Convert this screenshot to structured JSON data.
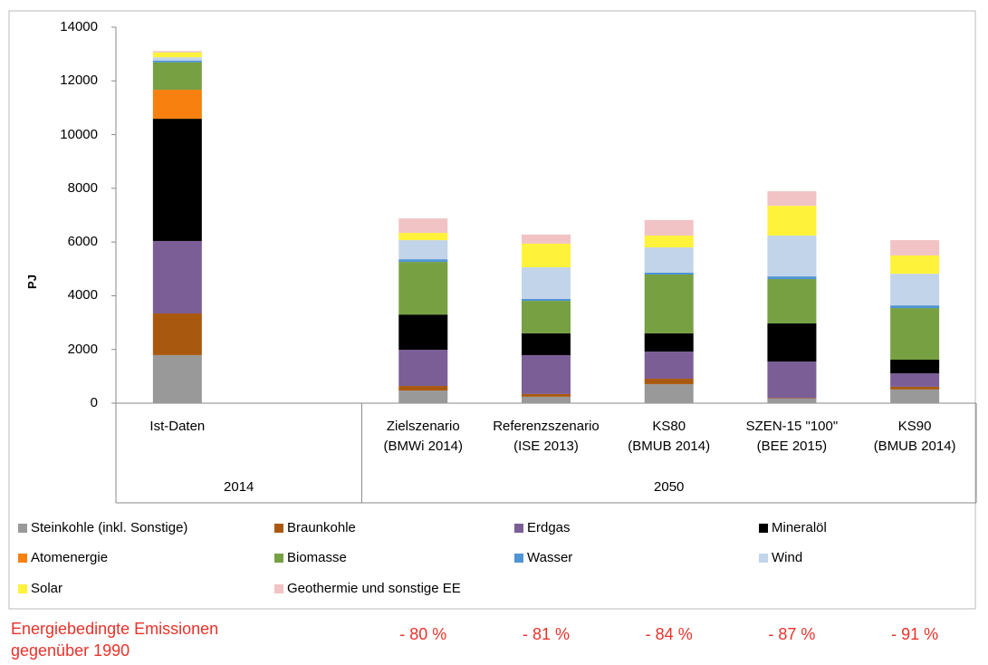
{
  "chart_data": {
    "type": "stacked_bar",
    "ylabel": "PJ",
    "categories": [
      "Ist-Daten",
      null,
      "Zielszenario\n(BMWi 2014)",
      "Referenzszenario\n(ISE 2013)",
      "KS80\n(BMUB 2014)",
      "SZEN-15 \"100\"\n(BEE 2015)",
      "KS90\n(BMUB 2014)"
    ],
    "groups": [
      "2014",
      "2050"
    ],
    "ylim": [
      0,
      14000
    ],
    "yticks": [
      0,
      2000,
      4000,
      6000,
      8000,
      10000,
      12000,
      14000
    ],
    "series": [
      {
        "name": "Steinkohle (inkl. Sonstige)",
        "color": "#999999",
        "values": [
          1790,
          null,
          470,
          240,
          710,
          170,
          510
        ]
      },
      {
        "name": "Braunkohle",
        "color": "#a9590f",
        "values": [
          1550,
          null,
          170,
          100,
          200,
          20,
          100
        ]
      },
      {
        "name": "Erdgas",
        "color": "#7b5e96",
        "values": [
          2700,
          null,
          1350,
          1450,
          1010,
          1360,
          500
        ]
      },
      {
        "name": "Mineralöl",
        "color": "#000000",
        "values": [
          4550,
          null,
          1310,
          810,
          680,
          1420,
          510
        ]
      },
      {
        "name": "Atomenergie",
        "color": "#f7800e",
        "values": [
          1080,
          null,
          0,
          0,
          0,
          0,
          0
        ]
      },
      {
        "name": "Biomasse",
        "color": "#77a043",
        "values": [
          1020,
          null,
          1960,
          1210,
          2190,
          1650,
          1920
        ]
      },
      {
        "name": "Wasser",
        "color": "#4f94d4",
        "values": [
          70,
          null,
          100,
          70,
          70,
          100,
          100
        ]
      },
      {
        "name": "Wind",
        "color": "#c2d4e9",
        "values": [
          120,
          null,
          710,
          1180,
          940,
          1520,
          1180
        ]
      },
      {
        "name": "Solar",
        "color": "#fff23a",
        "values": [
          180,
          null,
          270,
          880,
          440,
          1110,
          680
        ]
      },
      {
        "name": "Geothermie und sonstige EE",
        "color": "#f1c3c5",
        "values": [
          50,
          null,
          540,
          340,
          580,
          540,
          570
        ]
      }
    ],
    "annotations": {
      "label": "Energiebedingte Emissionen\ngegenüber 1990",
      "values": [
        null,
        null,
        "- 80 %",
        "- 81 %",
        "- 84 %",
        "- 87 %",
        "- 91 %"
      ]
    }
  }
}
